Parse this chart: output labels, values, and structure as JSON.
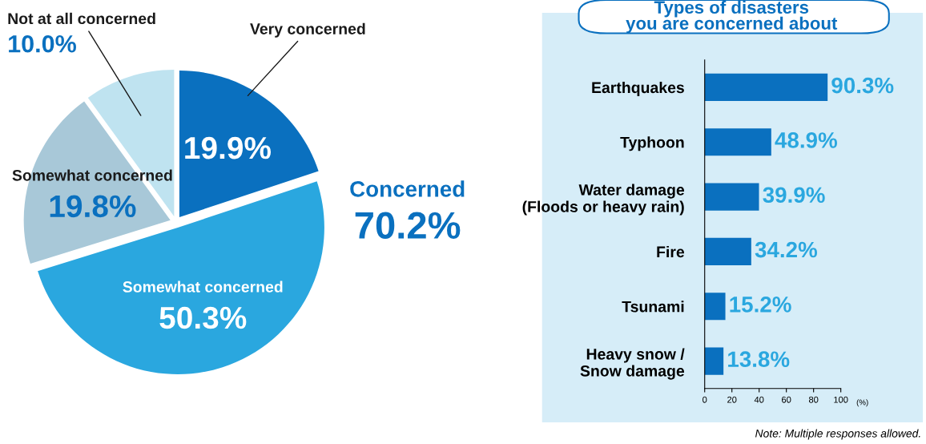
{
  "chart_data": [
    {
      "type": "pie",
      "categories": [
        "Very concerned",
        "Somewhat concerned",
        "Somewhat concerned",
        "Not at all concerned"
      ],
      "values": [
        19.9,
        50.3,
        19.8,
        10.0
      ],
      "colors": [
        "#0a70bf",
        "#2aa7df",
        "#a8c8d8",
        "#bfe3f0"
      ],
      "value_labels": [
        "19.9%",
        "50.3%",
        "19.8%",
        "10.0%"
      ],
      "legend": false,
      "annotations": [
        "Concerned",
        "70.2%"
      ]
    },
    {
      "type": "bar",
      "orientation": "horizontal",
      "title": "Types of disasters\nyou are concerned about",
      "categories": [
        "Earthquakes",
        "Typhoon",
        "Water damage\n(Floods or heavy rain)",
        "Fire",
        "Tsunami",
        "Heavy snow /\nSnow damage"
      ],
      "values": [
        90.3,
        48.9,
        39.9,
        34.2,
        15.2,
        13.8
      ],
      "color": "#0a70bf",
      "value_labels": [
        "90.3%",
        "48.9%",
        "39.9%",
        "34.2%",
        "15.2%",
        "13.8%"
      ],
      "xlim": [
        0,
        100
      ],
      "xticks": [
        0,
        20,
        40,
        60,
        80,
        100
      ],
      "xlabel": "(%)",
      "grid": false,
      "legend": false,
      "annotations": [
        "Note: Multiple responses allowed."
      ]
    }
  ]
}
